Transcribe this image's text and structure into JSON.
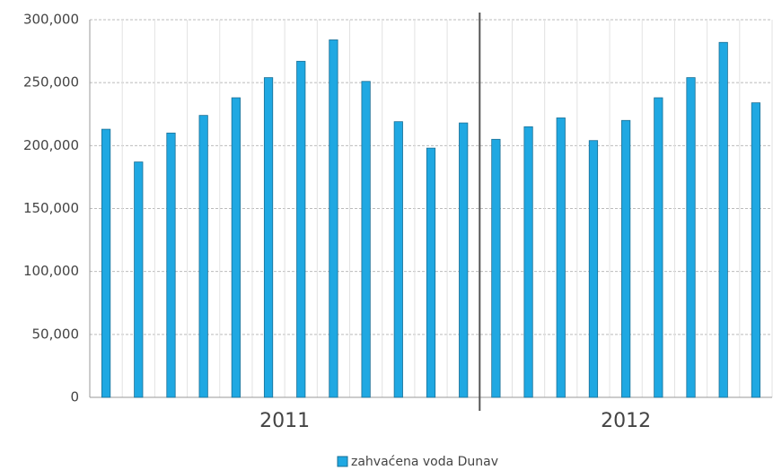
{
  "chart_data": {
    "type": "bar",
    "categories": [
      null,
      null,
      null,
      null,
      null,
      null,
      null,
      null,
      null,
      null,
      null,
      null,
      null,
      null,
      null,
      null,
      null,
      null,
      null,
      null,
      null
    ],
    "groups": [
      {
        "label": "2011",
        "size": 12
      },
      {
        "label": "2012",
        "size": 9
      }
    ],
    "series": [
      {
        "name": "zahvaćena voda Dunav",
        "color": "#1fa8e2",
        "values": [
          213000,
          187000,
          210000,
          224000,
          238000,
          254000,
          267000,
          284000,
          251000,
          219000,
          198000,
          218000,
          205000,
          215000,
          222000,
          204000,
          220000,
          238000,
          254000,
          282000,
          234000
        ]
      }
    ],
    "ylim": [
      0,
      300000
    ],
    "yticks": [
      0,
      {
        "value": 50000,
        "label": "50,000"
      },
      {
        "value": 100000,
        "label": "100,000"
      },
      {
        "value": 150000,
        "label": "150,000"
      },
      {
        "value": 200000,
        "label": "200,000"
      },
      {
        "value": 250000,
        "label": "250,000"
      },
      {
        "value": 300000,
        "label": "300,000"
      }
    ],
    "grid": true,
    "legend": "bottom"
  }
}
